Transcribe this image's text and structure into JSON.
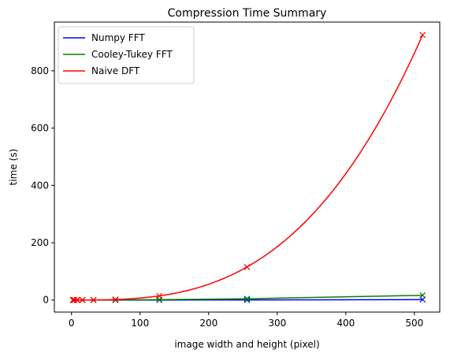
{
  "chart_data": {
    "type": "line",
    "title": "Compression Time Summary",
    "xlabel": "image width and height (pixel)",
    "ylabel": "time (s)",
    "xlim": [
      -25,
      537
    ],
    "ylim": [
      -42,
      970
    ],
    "xticks": [
      0,
      100,
      200,
      300,
      400,
      500
    ],
    "yticks": [
      0,
      200,
      400,
      600,
      800
    ],
    "grid": false,
    "legend_position": "upper-left",
    "marker": "x",
    "x": [
      2,
      4,
      8,
      16,
      32,
      64,
      128,
      256,
      512
    ],
    "series": [
      {
        "name": "Numpy FFT",
        "color": "#0000ff",
        "values": [
          0,
          0,
          0,
          0,
          0,
          0,
          0.05,
          0.3,
          1.5
        ]
      },
      {
        "name": "Cooley-Tukey FFT",
        "color": "#008000",
        "values": [
          0,
          0,
          0,
          0.01,
          0.05,
          0.3,
          1.2,
          4.5,
          16.5
        ]
      },
      {
        "name": "Naive DFT",
        "color": "#ff0000",
        "values": [
          0,
          0,
          0,
          0.01,
          0.3,
          2,
          14,
          115,
          925
        ],
        "curve": "cubic"
      }
    ]
  }
}
